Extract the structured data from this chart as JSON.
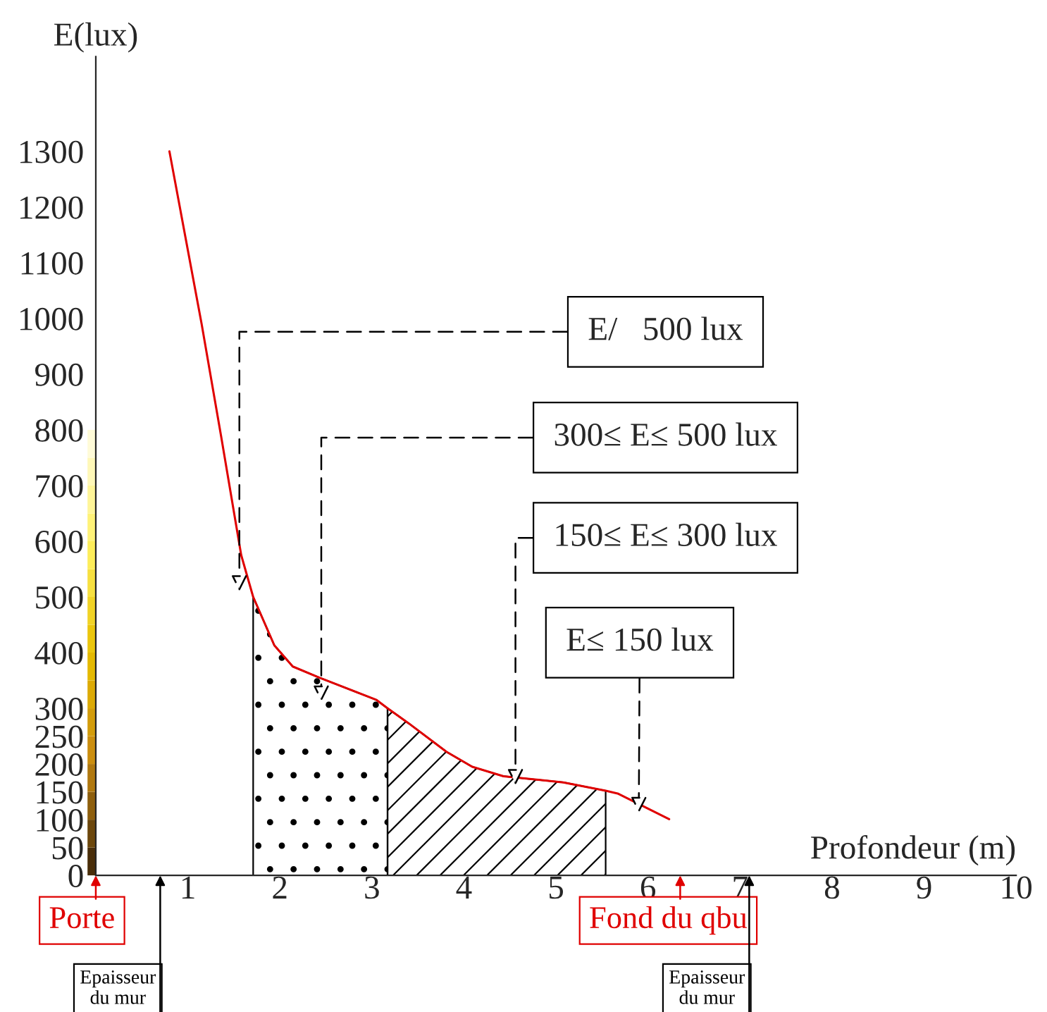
{
  "chart_data": {
    "type": "line",
    "xlabel": "Profondeur (m)",
    "ylabel": "E(lux)",
    "x": [
      0.8,
      1.15,
      1.36,
      1.58,
      1.71,
      1.94,
      2.14,
      2.43,
      3.05,
      3.17,
      3.4,
      3.81,
      4.09,
      4.43,
      5.08,
      5.54,
      5.67,
      6.23
    ],
    "series": [
      {
        "color": "#e00000",
        "values": [
          1300,
          990,
          790,
          575,
          500,
          413,
          375,
          355,
          315,
          300,
          273,
          222,
          195,
          178,
          167,
          152,
          147,
          101
        ]
      },
      {
        "type": "area",
        "color": "#000000",
        "x": [
          1.71,
          1.94,
          2.14,
          2.43,
          3.05,
          3.17
        ],
        "values": [
          500,
          413,
          375,
          355,
          315,
          300
        ]
      },
      {
        "type": "area",
        "color": "#000000",
        "x": [
          3.17,
          3.4,
          3.81,
          4.09,
          4.43,
          5.08,
          5.54
        ],
        "values": [
          300,
          273,
          222,
          195,
          178,
          167,
          152
        ]
      }
    ],
    "xlim": [
      0,
      10
    ],
    "xticks": [
      {
        "value": 0,
        "label": null
      },
      1,
      2,
      3,
      4,
      5,
      6,
      7,
      8,
      9,
      10
    ],
    "ylim": [
      0,
      1470
    ],
    "yticks": [
      0,
      50,
      100,
      150,
      200,
      250,
      300,
      400,
      500,
      600,
      700,
      800,
      900,
      1000,
      1100,
      1200,
      1300
    ],
    "annotations": [
      "E/   500 lux",
      "300≤ E≤ 500 lux",
      {
        "text": "150≤ E≤ 300 lux",
        "x": 4.56,
        "y": 162
      },
      {
        "text": "E≤ 150 lux",
        "x": 5.9,
        "y": 112
      },
      "Porte",
      "Epaisseur\ndu mur",
      "Fond du qbu",
      "Epaisseur\ndu mur"
    ],
    "grid": false,
    "legend": false,
    "marker": "none",
    "line_style": "solid"
  }
}
